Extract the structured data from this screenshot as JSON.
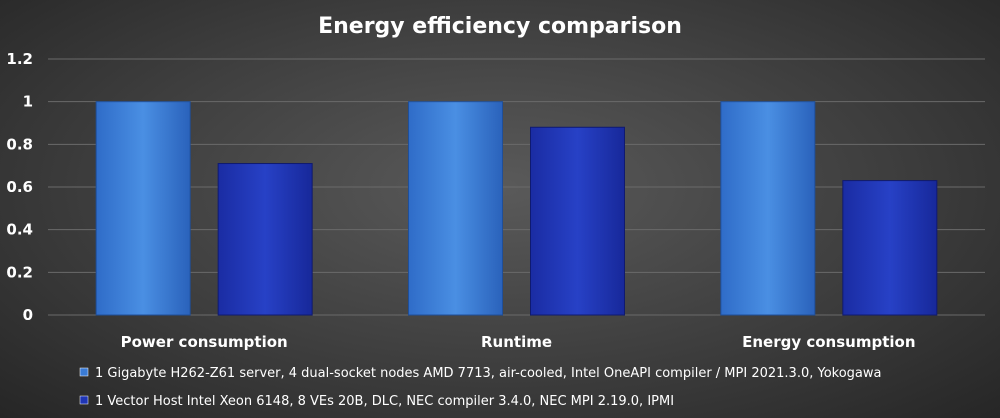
{
  "chart_data": {
    "type": "bar",
    "title": "Energy efficiency comparison",
    "xlabel": "",
    "ylabel": "",
    "categories": [
      "Power consumption",
      "Runtime",
      "Energy consumption"
    ],
    "series": [
      {
        "name": "1 Gigabyte H262-Z61 server, 4 dual-socket nodes AMD 7713, air-cooled, Intel OneAPI compiler / MPI 2021.3.0, Yokogawa",
        "values": [
          1.0,
          1.0,
          1.0
        ],
        "color": "#3a7bd5"
      },
      {
        "name": "1 Vector Host Intel Xeon 6148, 8 VEs 20B, DLC, NEC compiler 3.4.0, NEC MPI 2.19.0, IPMI",
        "values": [
          0.71,
          0.88,
          0.63
        ],
        "color": "#1f35b5"
      }
    ],
    "ylim": [
      0,
      1.2
    ],
    "yticks": [
      "0",
      "0.2",
      "0.4",
      "0.6",
      "0.8",
      "1",
      "1.2"
    ],
    "grid": true,
    "legend_position": "bottom-left"
  }
}
